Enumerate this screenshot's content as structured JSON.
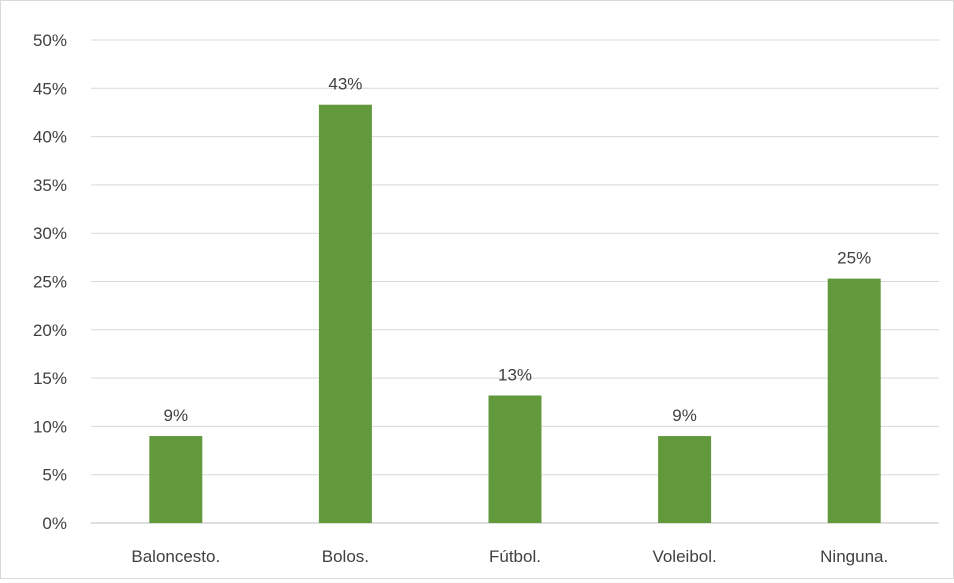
{
  "chart_data": {
    "type": "bar",
    "title": "",
    "xlabel": "",
    "ylabel": "",
    "categories": [
      "Baloncesto.",
      "Bolos.",
      "Fútbol.",
      "Voleibol.",
      "Ninguna."
    ],
    "values": [
      9,
      43.3,
      13.2,
      9,
      25.3
    ],
    "data_labels": [
      "9%",
      "43%",
      "13%",
      "9%",
      "25%"
    ],
    "ylim": [
      0,
      50
    ],
    "ytick_step": 5,
    "ytick_labels": [
      "0%",
      "5%",
      "10%",
      "15%",
      "20%",
      "25%",
      "30%",
      "35%",
      "40%",
      "45%",
      "50%"
    ],
    "grid": true,
    "legend": "none",
    "bar_color": "#63993d"
  }
}
